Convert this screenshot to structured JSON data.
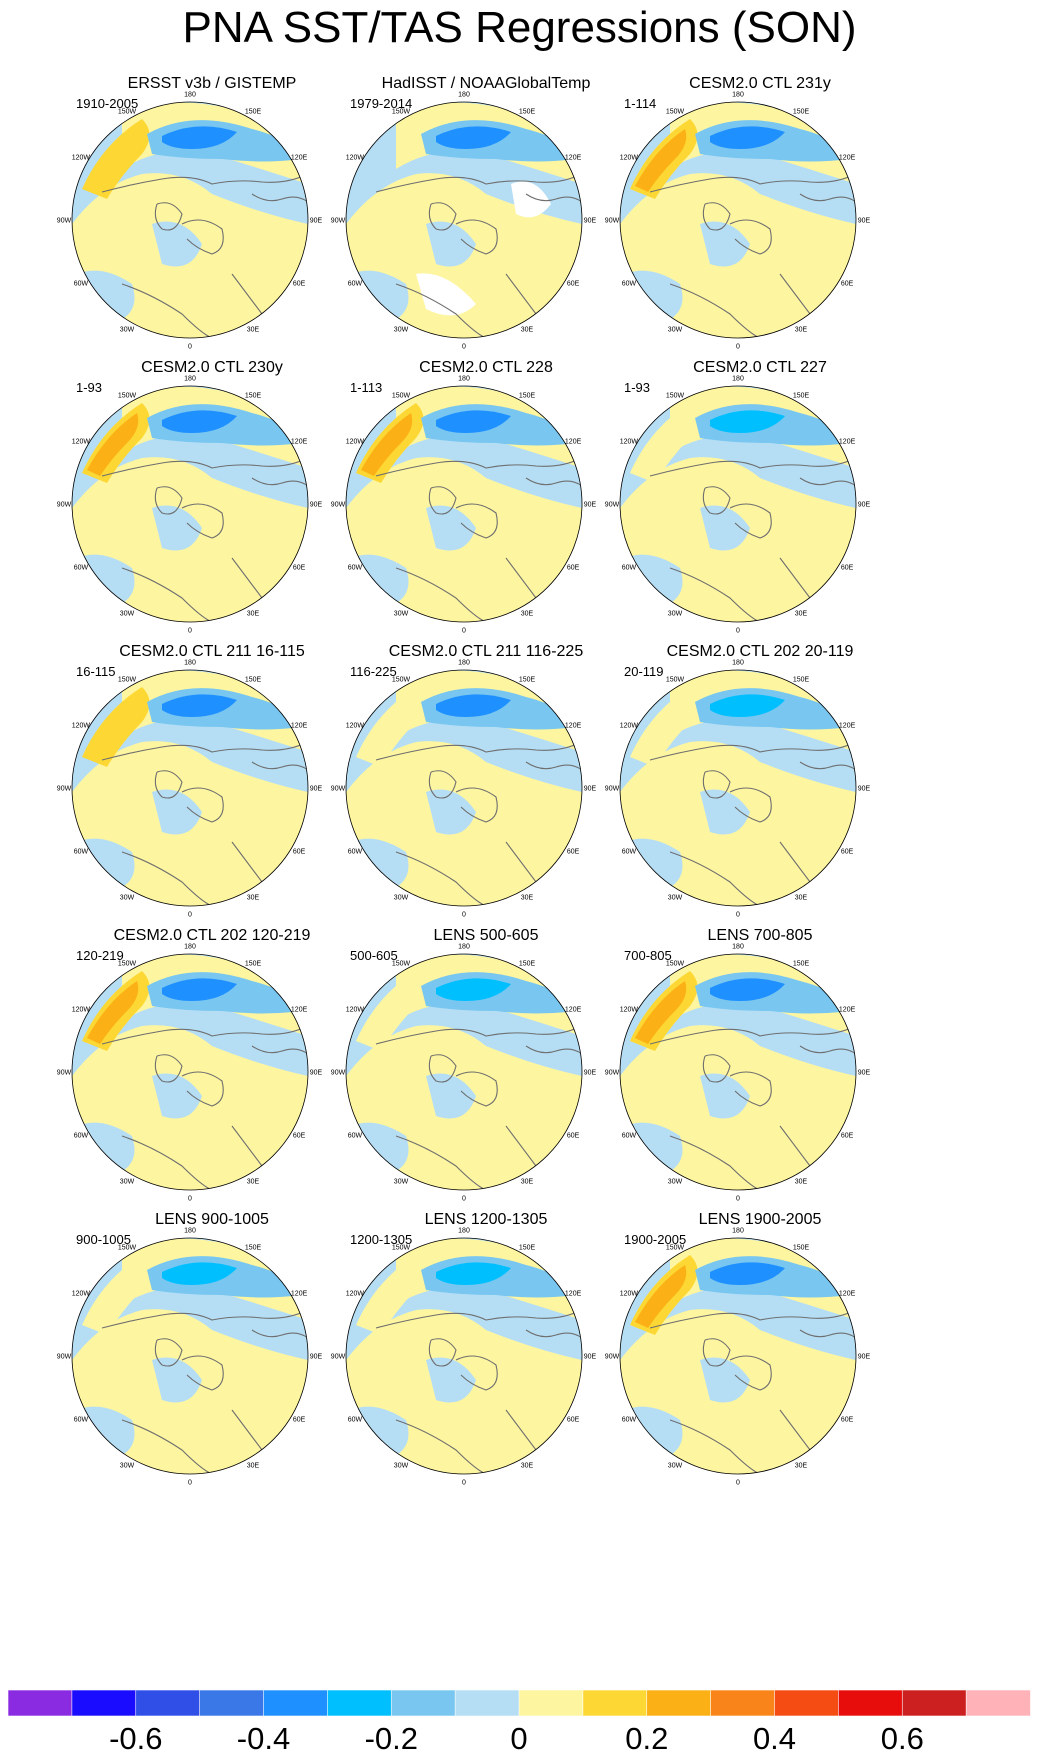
{
  "title": "PNA SST/TAS Regressions (SON)",
  "longitude_labels": [
    "180",
    "150E",
    "120E",
    "90E",
    "60E",
    "30E",
    "0",
    "30W",
    "60W",
    "90W",
    "120W",
    "150W"
  ],
  "panels": [
    {
      "title": "ERSST v3b / GISTEMP",
      "period": "1910-2005"
    },
    {
      "title": "HadISST / NOAAGlobalTemp",
      "period": "1979-2014"
    },
    {
      "title": "CESM2.0 CTL 231y",
      "period": "1-114"
    },
    {
      "title": "CESM2.0 CTL 230y",
      "period": "1-93"
    },
    {
      "title": "CESM2.0 CTL 228",
      "period": "1-113"
    },
    {
      "title": "CESM2.0 CTL 227",
      "period": "1-93"
    },
    {
      "title": "CESM2.0 CTL 211 16-115",
      "period": "16-115"
    },
    {
      "title": "CESM2.0 CTL 211 116-225",
      "period": "116-225"
    },
    {
      "title": "CESM2.0 CTL 202 20-119",
      "period": "20-119"
    },
    {
      "title": "CESM2.0 CTL 202 120-219",
      "period": "120-219"
    },
    {
      "title": "LENS 500-605",
      "period": "500-605"
    },
    {
      "title": "LENS 700-805",
      "period": "700-805"
    },
    {
      "title": "LENS 900-1005",
      "period": "900-1005"
    },
    {
      "title": "LENS 1200-1305",
      "period": "1200-1305"
    },
    {
      "title": "LENS 1900-2005",
      "period": "1900-2005"
    }
  ],
  "colorbar": {
    "colors": [
      "#8a2be2",
      "#1a0dff",
      "#2f4fe6",
      "#3a78e8",
      "#1e90ff",
      "#00bfff",
      "#79c7f0",
      "#b5def5",
      "#fdf5a0",
      "#fdd835",
      "#fbb116",
      "#f9851a",
      "#f54c14",
      "#e80d0d",
      "#cc1f1f",
      "#ffb3b8"
    ],
    "labels": [
      "-0.6",
      "-0.4",
      "-0.2",
      "0",
      "0.2",
      "0.4",
      "0.6"
    ]
  }
}
